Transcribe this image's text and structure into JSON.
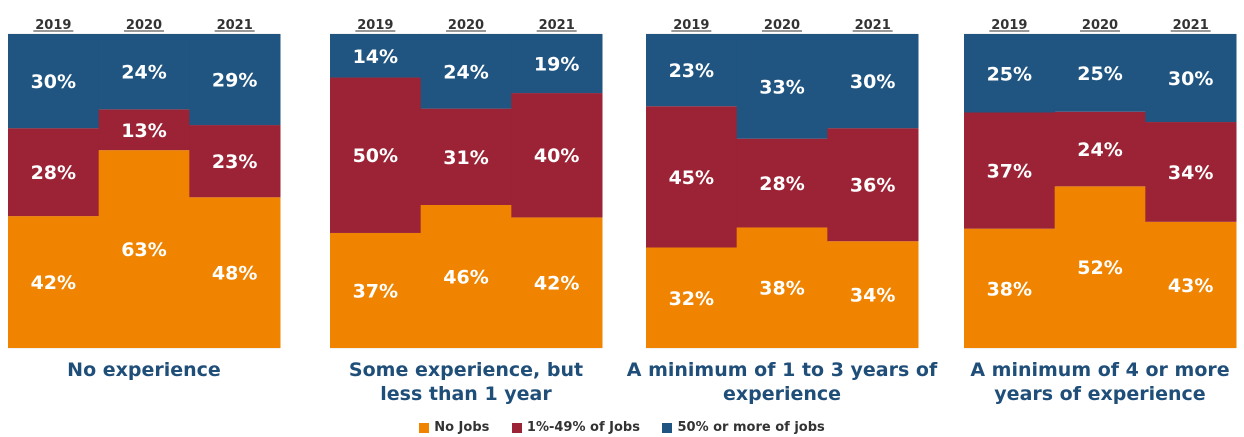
{
  "chart_data": {
    "type": "bar",
    "stacked": true,
    "years": [
      "2019",
      "2020",
      "2021"
    ],
    "series_order": [
      "No Jobs",
      "1%-49% of Jobs",
      "50% or more of jobs"
    ],
    "colors": {
      "No Jobs": "#f08400",
      "1%-49% of Jobs": "#9b2335",
      "50% or more of jobs": "#1f5580"
    },
    "groups": [
      {
        "title": [
          "No experience"
        ],
        "values": {
          "No Jobs": [
            42,
            63,
            48
          ],
          "1%-49% of Jobs": [
            28,
            13,
            23
          ],
          "50% or more of jobs": [
            30,
            24,
            29
          ]
        }
      },
      {
        "title": [
          "Some experience, but",
          "less than 1 year"
        ],
        "values": {
          "No Jobs": [
            37,
            46,
            42
          ],
          "1%-49% of Jobs": [
            50,
            31,
            40
          ],
          "50% or more of jobs": [
            14,
            24,
            19
          ]
        }
      },
      {
        "title": [
          "A minimum of 1 to 3 years of",
          "experience"
        ],
        "values": {
          "No Jobs": [
            32,
            38,
            34
          ],
          "1%-49% of Jobs": [
            45,
            28,
            36
          ],
          "50% or more of jobs": [
            23,
            33,
            30
          ]
        }
      },
      {
        "title": [
          "A minimum of 4 or more",
          "years of experience"
        ],
        "values": {
          "No Jobs": [
            38,
            52,
            43
          ],
          "1%-49% of Jobs": [
            37,
            24,
            34
          ],
          "50% or more of jobs": [
            25,
            25,
            30
          ]
        }
      }
    ],
    "legend": [
      "No Jobs",
      "1%-49% of Jobs",
      "50% or more of jobs"
    ],
    "legend_position": "bottom-center"
  }
}
